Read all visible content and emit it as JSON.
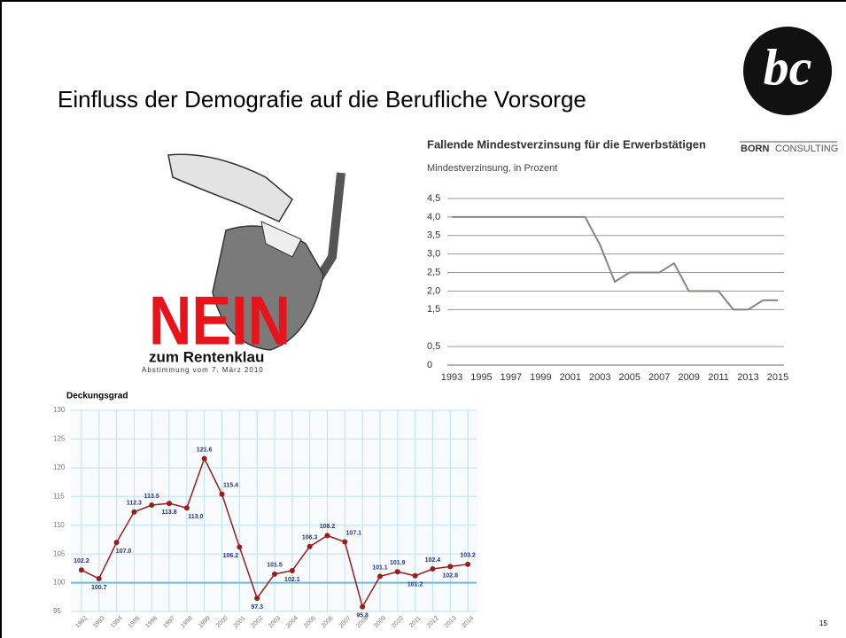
{
  "slide": {
    "title": "Einfluss der Demografie auf die Berufliche Vorsorge",
    "page_number": "15",
    "logo": {
      "mark": "bc",
      "name_bold": "BORN",
      "name_regular": "CONSULTING"
    },
    "poster": {
      "headline": "NEIN",
      "slogan": "zum Rentenklau",
      "note": "Abstimmung vom 7. März 2010"
    }
  },
  "chart_data": [
    {
      "type": "line",
      "title": "Fallende Mindestverzinsung für die Erwerbstätigen",
      "subtitle": "Mindestverzinsung, in Prozent",
      "x": [
        1993,
        1994,
        1995,
        1996,
        1997,
        1998,
        1999,
        2000,
        2001,
        2002,
        2003,
        2004,
        2005,
        2006,
        2007,
        2008,
        2009,
        2010,
        2011,
        2012,
        2013,
        2014,
        2015
      ],
      "series": [
        {
          "name": "Mindestverzinsung",
          "color": "#8a8580",
          "values": [
            4.0,
            4.0,
            4.0,
            4.0,
            4.0,
            4.0,
            4.0,
            4.0,
            4.0,
            4.0,
            3.25,
            2.25,
            2.5,
            2.5,
            2.5,
            2.75,
            2.0,
            2.0,
            2.0,
            1.5,
            1.5,
            1.75,
            1.75
          ]
        }
      ],
      "xlim": [
        1993,
        2015
      ],
      "xticks": [
        1993,
        1995,
        1997,
        1999,
        2001,
        2003,
        2005,
        2007,
        2009,
        2011,
        2013,
        2015
      ],
      "ylim": [
        0,
        4.5
      ],
      "yticks": [
        0,
        {
          "value": 0.5,
          "label": "0,5"
        },
        {
          "value": 1.5,
          "label": "1,5"
        },
        {
          "value": 2,
          "label": "2,0"
        },
        {
          "value": 2.5,
          "label": "2,5"
        },
        {
          "value": 3,
          "label": "3,0"
        },
        {
          "value": 3.5,
          "label": "3,5"
        },
        {
          "value": 4,
          "label": "4,0"
        },
        {
          "value": 4.5,
          "label": "4,5"
        }
      ],
      "grid": true
    },
    {
      "type": "line",
      "title": "Deckungsgrad",
      "categories": [
        "1992",
        "1993",
        "1994",
        "1995",
        "1996",
        "1997",
        "1998",
        "1999",
        "2000",
        "2001",
        "2002",
        "2003",
        "2004",
        "2005",
        "2006",
        "2007",
        "2008",
        "2009",
        "2010",
        "2011",
        "2012",
        "2013",
        "2014"
      ],
      "series": [
        {
          "name": "Deckungsgrad",
          "color": "#9b1c1c",
          "values": [
            102.2,
            100.7,
            107.0,
            112.3,
            113.5,
            113.8,
            113.0,
            121.6,
            115.4,
            106.2,
            97.3,
            101.5,
            102.1,
            106.3,
            108.2,
            107.1,
            95.8,
            101.1,
            101.9,
            101.2,
            102.4,
            102.8,
            103.2
          ],
          "value_labels": [
            "102.2",
            "100.7",
            "107.0",
            "112.3",
            "113.5",
            "113.8",
            "113.0",
            "121.6",
            "115.4",
            "106.2",
            "97.3",
            "101.5",
            "102.1",
            "106.3",
            "108.2",
            "107.1",
            "95.8",
            "101.1",
            "101.9",
            "101.2",
            "102.4",
            "102.8",
            "103.2"
          ]
        }
      ],
      "ylim": [
        95,
        130
      ],
      "yticks": [
        95,
        100,
        105,
        110,
        115,
        120,
        125,
        130
      ],
      "reference_line": 100,
      "grid": true
    }
  ]
}
